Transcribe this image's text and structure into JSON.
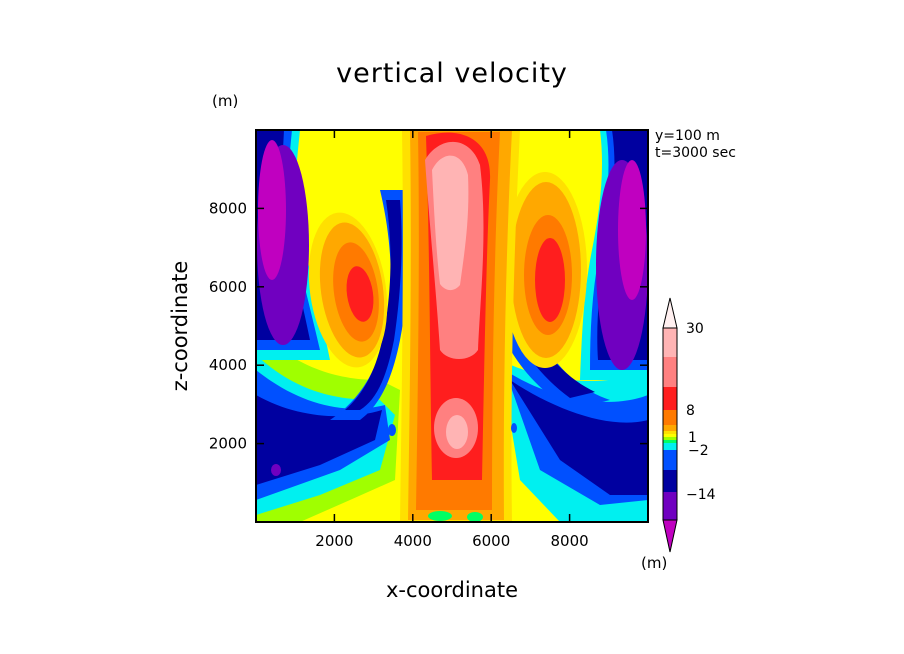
{
  "chart_data": {
    "type": "heatmap",
    "title": "vertical velocity",
    "xlabel": "x-coordinate",
    "ylabel": "z-coordinate",
    "x_unit": "(m)",
    "y_unit": "(m)",
    "colorbar_unit": "(m)",
    "annotations": [
      "y=100 m",
      "t=3000 sec"
    ],
    "xlim": [
      0,
      10000
    ],
    "ylim": [
      0,
      10000
    ],
    "xticks": [
      2000,
      4000,
      6000,
      8000
    ],
    "yticks": [
      2000,
      4000,
      6000,
      8000
    ],
    "grid": false,
    "colorbar": {
      "levels_labeled": [
        30,
        8,
        1,
        -2,
        -14
      ],
      "colors_top_to_bottom": [
        "#ffb4b4",
        "#ff8080",
        "#ff1e1e",
        "#ff7a00",
        "#ffa800",
        "#ffe000",
        "#ffff00",
        "#a0ff00",
        "#00ff64",
        "#00f0f0",
        "#0050ff",
        "#0000a0",
        "#7000c0",
        "#c000c0"
      ]
    },
    "fields": {
      "central_updraft": {
        "x_center": 5000,
        "z_range": [
          400,
          9700
        ],
        "max_w": 30
      },
      "side_updrafts": [
        {
          "x_center": 2700,
          "z_center": 6000,
          "w": 8
        },
        {
          "x_center": 7400,
          "z_center": 6100,
          "w": 8
        }
      ],
      "downdraft_bands": [
        {
          "from_x": 3800,
          "to_x": 500,
          "z_range": [
            1000,
            9000
          ],
          "w": -2
        },
        {
          "from_x": 6300,
          "to_x": 9500,
          "z_range": [
            1000,
            9000
          ],
          "w": -2
        }
      ],
      "edge_downdrafts": [
        {
          "x_center": 600,
          "z_center": 6500,
          "w": -14
        },
        {
          "x_center": 9400,
          "z_center": 6500,
          "w": -14
        }
      ]
    }
  }
}
